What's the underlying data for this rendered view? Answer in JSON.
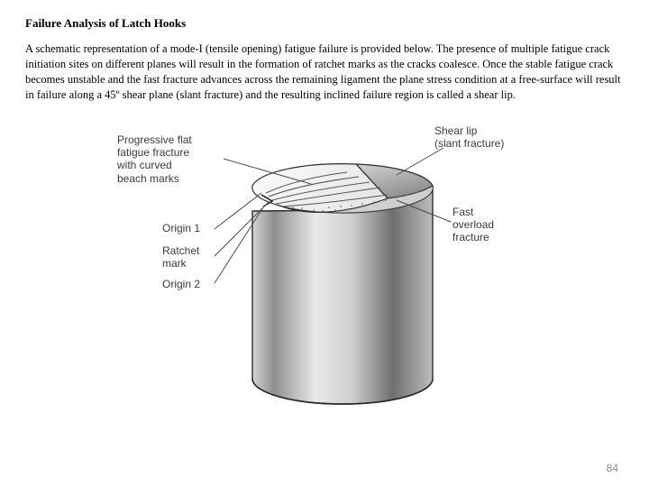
{
  "title": "Failure Analysis of Latch Hooks",
  "paragraph": "A schematic representation of a mode-I (tensile opening) fatigue failure is provided below.  The presence of multiple fatigue crack initiation sites on different planes will result in the formation of ratchet marks as the cracks coalesce.  Once the stable fatigue crack becomes unstable and the fast fracture advances across the remaining ligament the plane stress condition at a free-surface will result in failure along a 45º shear plane (slant fracture) and the resulting inclined failure region is called a shear lip.",
  "labels": {
    "progressive": "Progressive flat\nfatigue fracture\nwith curved\nbeach marks",
    "origin1": "Origin 1",
    "ratchet": "Ratchet\nmark",
    "origin2": "Origin 2",
    "shearlip": "Shear lip\n(slant fracture)",
    "fast": "Fast\noverload\nfracture"
  },
  "page": "84",
  "colors": {
    "cyl_edge": "#2b2b2b",
    "cyl_side_light": "#d8d8d8",
    "cyl_side_dark": "#6a6a6a",
    "top_face": "#f2f2f2",
    "shear_face": "#bcbcbc",
    "beach_line": "#555555",
    "leader": "#4a4a4a"
  }
}
